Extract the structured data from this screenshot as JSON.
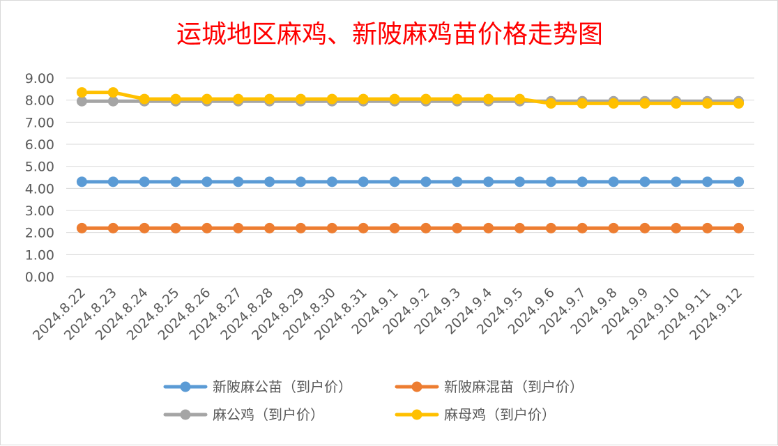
{
  "chart_data": {
    "type": "line",
    "title": "运城地区麻鸡、新陂麻鸡苗价格走势图",
    "xlabel": "",
    "ylabel": "",
    "ylim": [
      0,
      9
    ],
    "yticks": [
      "0.00",
      "1.00",
      "2.00",
      "3.00",
      "4.00",
      "5.00",
      "6.00",
      "7.00",
      "8.00",
      "9.00"
    ],
    "grid": true,
    "legend_position": "bottom",
    "categories": [
      "2024.8.22",
      "2024.8.23",
      "2024.8.24",
      "2024.8.25",
      "2024.8.26",
      "2024.8.27",
      "2024.8.28",
      "2024.8.29",
      "2024.8.30",
      "2024.8.31",
      "2024.9.1",
      "2024.9.2",
      "2024.9.3",
      "2024.9.4",
      "2024.9.5",
      "2024.9.6",
      "2024.9.7",
      "2024.9.8",
      "2024.9.9",
      "2024.9.10",
      "2024.9.11",
      "2024.9.12"
    ],
    "series": [
      {
        "name": "新陂麻公苗（到户价）",
        "color": "#5b9bd5",
        "values": [
          4.3,
          4.3,
          4.3,
          4.3,
          4.3,
          4.3,
          4.3,
          4.3,
          4.3,
          4.3,
          4.3,
          4.3,
          4.3,
          4.3,
          4.3,
          4.3,
          4.3,
          4.3,
          4.3,
          4.3,
          4.3,
          4.3
        ]
      },
      {
        "name": "新陂麻混苗（到户价）",
        "color": "#ed7d31",
        "values": [
          2.2,
          2.2,
          2.2,
          2.2,
          2.2,
          2.2,
          2.2,
          2.2,
          2.2,
          2.2,
          2.2,
          2.2,
          2.2,
          2.2,
          2.2,
          2.2,
          2.2,
          2.2,
          2.2,
          2.2,
          2.2,
          2.2
        ]
      },
      {
        "name": "麻公鸡（到户价）",
        "color": "#a5a5a5",
        "values": [
          7.95,
          7.95,
          7.95,
          7.95,
          7.95,
          7.95,
          7.95,
          7.95,
          7.95,
          7.95,
          7.95,
          7.95,
          7.95,
          7.95,
          7.95,
          7.95,
          7.95,
          7.95,
          7.95,
          7.95,
          7.95,
          7.95
        ]
      },
      {
        "name": "麻母鸡（到户价）",
        "color": "#ffc000",
        "values": [
          8.35,
          8.35,
          8.05,
          8.05,
          8.05,
          8.05,
          8.05,
          8.05,
          8.05,
          8.05,
          8.05,
          8.05,
          8.05,
          8.05,
          8.05,
          7.85,
          7.85,
          7.85,
          7.85,
          7.85,
          7.85,
          7.85
        ]
      }
    ]
  }
}
